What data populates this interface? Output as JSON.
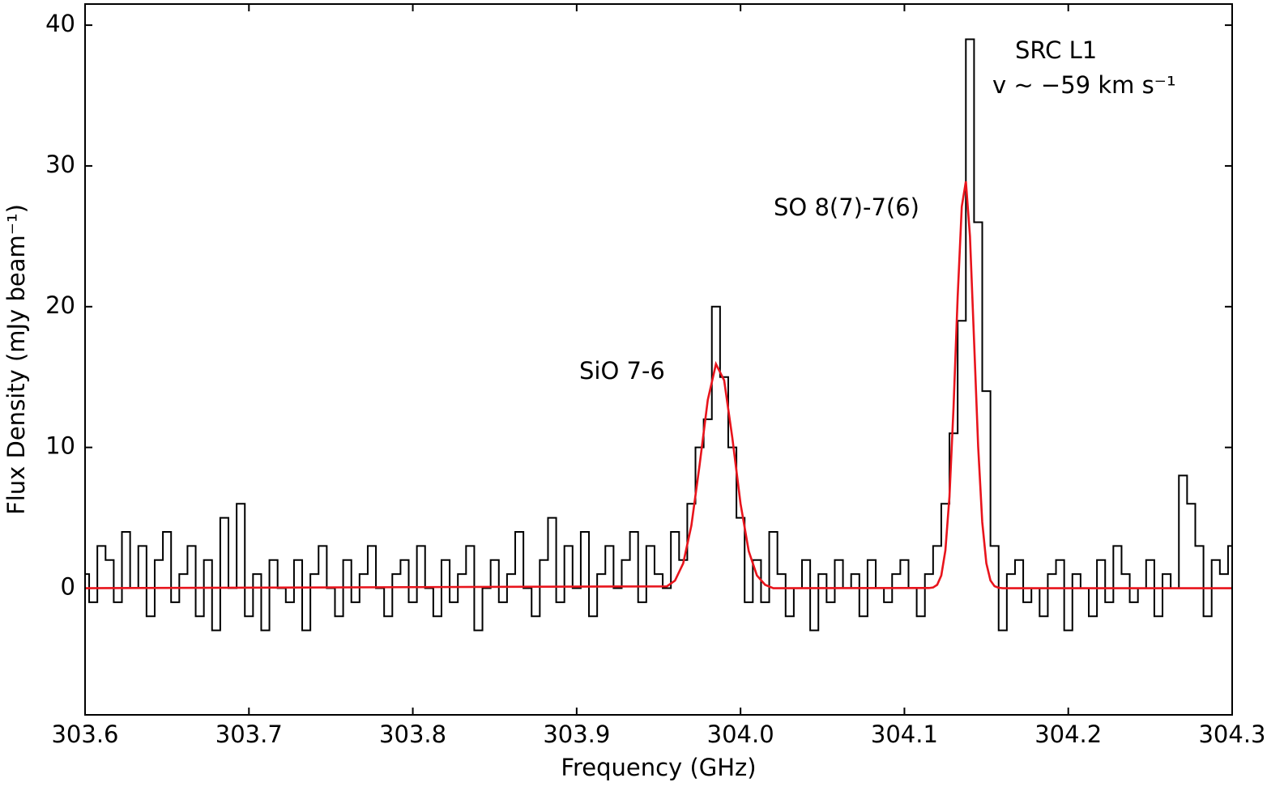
{
  "chart_data": {
    "type": "line",
    "xlabel": "Frequency (GHz)",
    "ylabel": "Flux Density (mJy beam⁻¹)",
    "annotations": [
      "SiO 7-6",
      "SO 8(7)-7(6)",
      "SRC L1",
      "v ~ −59 km s⁻¹"
    ],
    "xlim": [
      303.6,
      304.3
    ],
    "ylim": [
      -9,
      41.5
    ],
    "xticks": [
      303.6,
      303.7,
      303.8,
      303.9,
      {
        "value": 304,
        "label": "304.0"
      },
      304.1,
      304.2,
      304.3
    ],
    "yticks": [
      0,
      10,
      20,
      30,
      40
    ],
    "series": [
      {
        "color": "#000000",
        "step": true,
        "x": [
          303.6,
          303.605,
          303.61,
          303.615,
          303.62,
          303.625,
          303.63,
          303.635,
          303.64,
          303.645,
          303.65,
          303.655,
          303.66,
          303.665,
          303.67,
          303.675,
          303.68,
          303.685,
          303.69,
          303.695,
          303.7,
          303.705,
          303.71,
          303.715,
          303.72,
          303.725,
          303.73,
          303.735,
          303.74,
          303.745,
          303.75,
          303.755,
          303.76,
          303.765,
          303.77,
          303.775,
          303.78,
          303.785,
          303.79,
          303.795,
          303.8,
          303.805,
          303.81,
          303.815,
          303.82,
          303.825,
          303.83,
          303.835,
          303.84,
          303.845,
          303.85,
          303.855,
          303.86,
          303.865,
          303.87,
          303.875,
          303.88,
          303.885,
          303.89,
          303.895,
          303.9,
          303.905,
          303.91,
          303.915,
          303.92,
          303.925,
          303.93,
          303.935,
          303.94,
          303.945,
          303.95,
          303.955,
          303.96,
          303.965,
          303.97,
          303.975,
          303.98,
          303.985,
          303.99,
          303.995,
          304,
          304.005,
          304.01,
          304.015,
          304.02,
          304.025,
          304.03,
          304.035,
          304.04,
          304.045,
          304.05,
          304.055,
          304.06,
          304.065,
          304.07,
          304.075,
          304.08,
          304.085,
          304.09,
          304.095,
          304.1,
          304.105,
          304.11,
          304.115,
          304.12,
          304.125,
          304.13,
          304.135,
          304.14,
          304.145,
          304.15,
          304.155,
          304.16,
          304.165,
          304.17,
          304.175,
          304.18,
          304.185,
          304.19,
          304.195,
          304.2,
          304.205,
          304.21,
          304.215,
          304.22,
          304.225,
          304.23,
          304.235,
          304.24,
          304.245,
          304.25,
          304.255,
          304.26,
          304.265,
          304.27,
          304.275,
          304.28,
          304.285,
          304.29,
          304.295,
          304.3
        ],
        "values": [
          1,
          -1,
          3,
          2,
          -1,
          4,
          0,
          3,
          -2,
          2,
          4,
          -1,
          1,
          3,
          -2,
          2,
          -3,
          5,
          0,
          6,
          -2,
          1,
          -3,
          2,
          0,
          -1,
          2,
          -3,
          1,
          3,
          0,
          -2,
          2,
          -1,
          1,
          3,
          0,
          -2,
          1,
          2,
          -1,
          3,
          0,
          -2,
          2,
          -1,
          1,
          3,
          -3,
          0,
          2,
          -1,
          1,
          4,
          0,
          -2,
          2,
          5,
          -1,
          3,
          0,
          4,
          -2,
          1,
          3,
          0,
          2,
          4,
          -1,
          3,
          1,
          0,
          4,
          2,
          6,
          10,
          12,
          20,
          15,
          10,
          5,
          -1,
          2,
          -1,
          4,
          1,
          -2,
          0,
          2,
          -3,
          1,
          -1,
          2,
          0,
          1,
          -2,
          2,
          0,
          -1,
          1,
          2,
          0,
          -2,
          1,
          3,
          6,
          11,
          19,
          39,
          26,
          14,
          3,
          -3,
          1,
          2,
          -1,
          0,
          -2,
          1,
          2,
          -3,
          1,
          0,
          -2,
          2,
          -1,
          3,
          1,
          -1,
          0,
          2,
          -2,
          1,
          0,
          8,
          6,
          3,
          -2,
          2,
          1,
          3
        ]
      },
      {
        "color": "#e8141c",
        "step": false,
        "x": [
          303.6,
          303.955,
          303.96,
          303.965,
          303.97,
          303.975,
          303.98,
          303.985,
          303.99,
          303.995,
          304,
          304.005,
          304.01,
          304.015,
          304.02,
          304.115,
          304.1175,
          304.12,
          304.1225,
          304.125,
          304.1275,
          304.13,
          304.1325,
          304.135,
          304.1375,
          304.14,
          304.1425,
          304.145,
          304.1475,
          304.15,
          304.1525,
          304.155,
          304.1575,
          304.16,
          304.3
        ],
        "values": [
          0,
          0.13,
          0.54,
          1.76,
          4.45,
          8.74,
          13.37,
          15.92,
          14.77,
          10.67,
          6.0,
          2.63,
          0.9,
          0.24,
          0,
          0.01,
          0.05,
          0.24,
          0.9,
          2.68,
          6.52,
          12.9,
          20.7,
          27.1,
          28.9,
          25.0,
          17.6,
          10.07,
          4.69,
          1.77,
          0.55,
          0.14,
          0.03,
          0,
          0
        ]
      }
    ]
  }
}
